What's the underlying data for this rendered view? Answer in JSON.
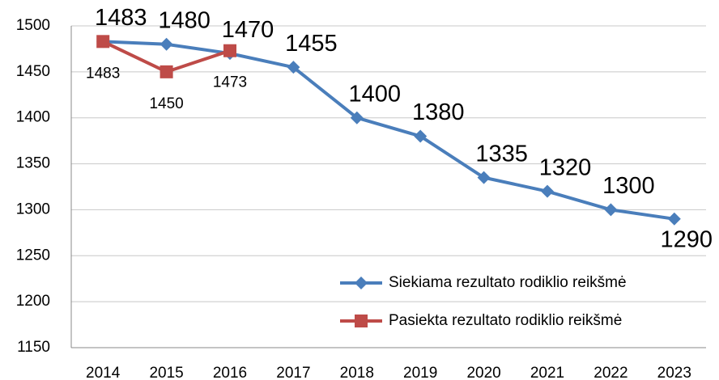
{
  "chart_data": {
    "type": "line",
    "categories": [
      "2014",
      "2015",
      "2016",
      "2017",
      "2018",
      "2019",
      "2020",
      "2021",
      "2022",
      "2023"
    ],
    "series": [
      {
        "name": "Siekiama rezultato rodiklio reikšmė",
        "color": "#4a7ebb",
        "marker": "diamond",
        "values": [
          1483,
          1480,
          1470,
          1455,
          1400,
          1380,
          1335,
          1320,
          1300,
          1290
        ]
      },
      {
        "name": "Pasiekta rezultato rodiklio reikšmė",
        "color": "#be4b48",
        "marker": "square",
        "values": [
          1483,
          1450,
          1473,
          null,
          null,
          null,
          null,
          null,
          null,
          null
        ]
      }
    ],
    "ylim": [
      1150,
      1500
    ],
    "yticks": [
      1150,
      1200,
      1250,
      1300,
      1350,
      1400,
      1450,
      1500
    ],
    "grid": true,
    "legend": "lower right"
  }
}
